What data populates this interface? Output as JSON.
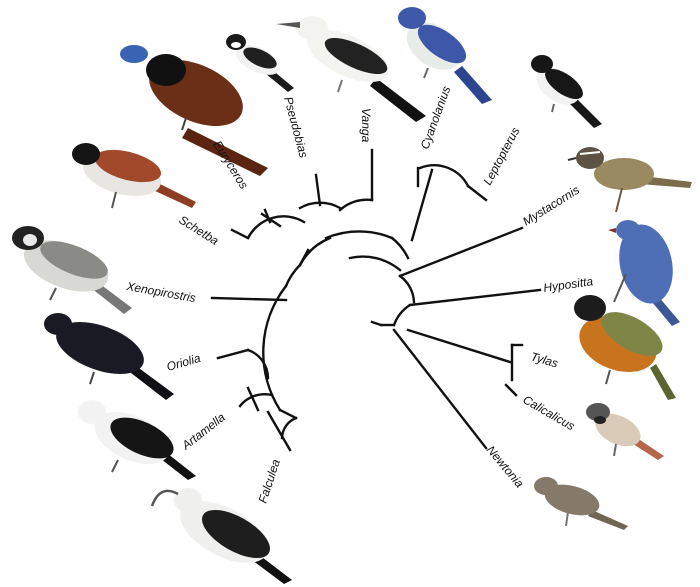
{
  "taxa": [
    {
      "key": "euryceros",
      "label": "Euryceros",
      "bird": "helmet-vanga-illustration",
      "colors": {
        "body": "#6b2e16",
        "head": "#111111",
        "beak": "#3b63b3"
      }
    },
    {
      "key": "pseudobias",
      "label": "Pseudobias",
      "bird": "ward-flycatcher-illustration",
      "colors": {
        "body": "#f2f2f2",
        "head": "#1a1a1a"
      }
    },
    {
      "key": "vanga",
      "label": "Vanga",
      "bird": "hook-billed-vanga-illustration",
      "colors": {
        "body": "#f3f3f0",
        "wing": "#222222"
      }
    },
    {
      "key": "cyanolanius",
      "label": "Cyanolanius",
      "bird": "blue-vanga-illustration",
      "colors": {
        "body": "#e8ece8",
        "back": "#3d58a8"
      }
    },
    {
      "key": "leptopterus",
      "label": "Leptopterus",
      "bird": "chabert-vanga-illustration",
      "colors": {
        "body": "#f2f2f2",
        "back": "#171717"
      }
    },
    {
      "key": "mystacornis",
      "label": "Mystacornis",
      "bird": "crossley-vanga-illustration",
      "colors": {
        "body": "#9a8a62",
        "head": "#5d5244"
      }
    },
    {
      "key": "hypositta",
      "label": "Hypositta",
      "bird": "nuthatch-vanga-illustration",
      "colors": {
        "body": "#4e6fb5"
      }
    },
    {
      "key": "tylas",
      "label": "Tylas",
      "bird": "tylas-vanga-illustration",
      "colors": {
        "body": "#c8741f",
        "back": "#7d8646",
        "head": "#1c1c1c"
      }
    },
    {
      "key": "calicalicus",
      "label": "Calicalicus",
      "bird": "red-tailed-vanga-illustration",
      "colors": {
        "body": "#d9cbb8",
        "head": "#555555",
        "tail": "#b6674a"
      }
    },
    {
      "key": "newtonia",
      "label": "Newtonia",
      "bird": "newtonia-illustration",
      "colors": {
        "body": "#857a69"
      }
    },
    {
      "key": "falculea",
      "label": "Falculea",
      "bird": "sicklebill-illustration",
      "colors": {
        "body": "#f0f0ee",
        "wing": "#1e1e1e"
      }
    },
    {
      "key": "artamella",
      "label": "Artamella",
      "bird": "white-headed-vanga-illustration",
      "colors": {
        "body": "#f2f2f2",
        "wing": "#151515"
      }
    },
    {
      "key": "oriolia",
      "label": "Oriolia",
      "bird": "bernier-vanga-illustration",
      "colors": {
        "body": "#1a1a24"
      }
    },
    {
      "key": "xenopirostris",
      "label": "Xenopirostris",
      "bird": "xenopirostris-illustration",
      "colors": {
        "body": "#d8d8d4",
        "back": "#8a8a86",
        "head": "#222222"
      }
    },
    {
      "key": "schetba",
      "label": "Schetba",
      "bird": "rufous-vanga-illustration",
      "colors": {
        "body": "#e8e6e2",
        "back": "#a3492b",
        "head": "#151515"
      }
    }
  ]
}
